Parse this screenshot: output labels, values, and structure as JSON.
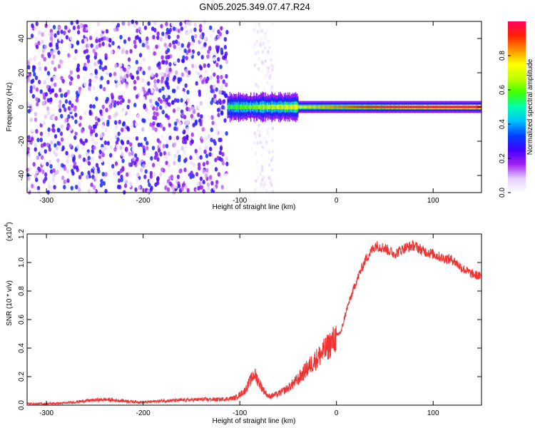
{
  "title": "GN05.2025.349.07.47.R24",
  "chart_data": [
    {
      "type": "heatmap",
      "xlabel": "Height of straight line (km)",
      "ylabel": "Frequency (Hz)",
      "xlim": [
        -320,
        150
      ],
      "ylim": [
        -50,
        50
      ],
      "x_ticks": [
        -300,
        -200,
        -100,
        0,
        100
      ],
      "y_ticks": [
        -40,
        -20,
        0,
        20,
        40
      ],
      "colorbar": {
        "label": "Normalized spectral amplitude",
        "range": [
          0,
          1
        ],
        "ticks": [
          0.0,
          0.2,
          0.4,
          0.6,
          0.8
        ],
        "tick_labels": [
          "0.0",
          "0.2",
          "0.4",
          "0.6",
          "0.8"
        ],
        "colors": [
          "#ffffff",
          "#e4ccff",
          "#a020f0",
          "#4000ff",
          "#0040ff",
          "#00c0ff",
          "#00ffb0",
          "#40ff00",
          "#c0ff00",
          "#ffff00",
          "#ff9000",
          "#ff2000",
          "#ff0060"
        ]
      },
      "regions": [
        {
          "name": "noise",
          "x_range": [
            -320,
            -113
          ],
          "y_range": [
            -50,
            50
          ],
          "level": 0.2
        },
        {
          "name": "band-noise",
          "x_range": [
            -85,
            -65
          ],
          "y_range": [
            -50,
            50
          ],
          "level": 0.08
        },
        {
          "name": "signal",
          "x_range": [
            -113,
            150
          ],
          "y_center": 0,
          "level_range": [
            0.3,
            1.0
          ]
        }
      ]
    },
    {
      "type": "line",
      "xlabel": "Height of straight line (km)",
      "ylabel": "SNR (10 * v/v)",
      "y_multiplier": "(x10",
      "y_multiplier_exp": "4",
      "xlim": [
        -320,
        150
      ],
      "ylim": [
        0,
        1.2
      ],
      "x_ticks": [
        -300,
        -200,
        -100,
        0,
        100
      ],
      "y_ticks": [
        0.0,
        0.2,
        0.4,
        0.6,
        0.8,
        1.0,
        1.2
      ],
      "y_tick_labels": [
        "0.0",
        "0.2",
        "0.4",
        "0.6",
        "0.8",
        "1.0",
        "1.2"
      ],
      "color": "#ee3333",
      "series": [
        {
          "x": [
            -320,
            -300,
            -280,
            -260,
            -240,
            -220,
            -200,
            -180,
            -160,
            -140,
            -120,
            -105,
            -95,
            -85,
            -80,
            -75,
            -70,
            -60,
            -50,
            -40,
            -30,
            -20,
            -10,
            0,
            5,
            10,
            20,
            30,
            40,
            50,
            60,
            70,
            80,
            90,
            100,
            110,
            120,
            130,
            140,
            150
          ],
          "y": [
            0.01,
            0.01,
            0.015,
            0.03,
            0.04,
            0.03,
            0.02,
            0.03,
            0.035,
            0.04,
            0.04,
            0.05,
            0.1,
            0.22,
            0.16,
            0.1,
            0.06,
            0.08,
            0.12,
            0.18,
            0.26,
            0.33,
            0.4,
            0.48,
            0.52,
            0.66,
            0.86,
            1.02,
            1.12,
            1.1,
            1.06,
            1.1,
            1.12,
            1.08,
            1.06,
            1.03,
            1.02,
            0.96,
            0.92,
            0.9
          ]
        }
      ]
    }
  ]
}
